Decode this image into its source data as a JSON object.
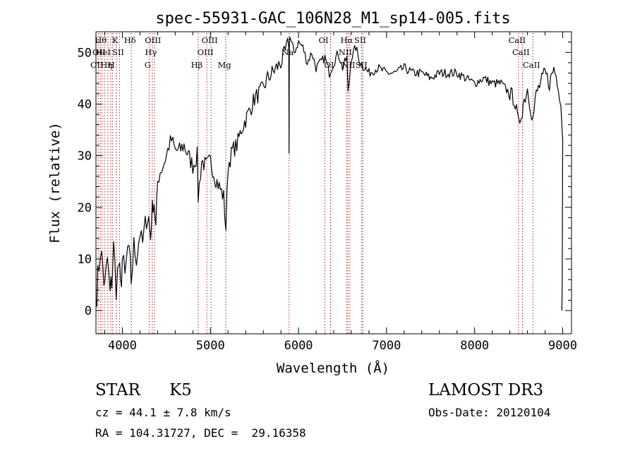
{
  "chart_data": {
    "type": "line",
    "title": "spec-55931-GAC_106N28_M1_sp14-005.fits",
    "xlabel": "Wavelength (Å)",
    "ylabel": "Flux (relative)",
    "xlim": [
      3700,
      9100
    ],
    "ylim": [
      -4.5,
      54
    ],
    "xticks": [
      4000,
      5000,
      6000,
      7000,
      8000,
      9000
    ],
    "yticks": [
      0,
      10,
      20,
      30,
      40,
      50
    ],
    "grid": false,
    "series": [
      {
        "name": "flux",
        "x": [
          3700,
          3720,
          3750,
          3780,
          3800,
          3830,
          3860,
          3880,
          3900,
          3930,
          3960,
          3980,
          4000,
          4030,
          4060,
          4090,
          4100,
          4130,
          4160,
          4200,
          4230,
          4260,
          4300,
          4320,
          4340,
          4360,
          4380,
          4400,
          4430,
          4460,
          4500,
          4530,
          4560,
          4600,
          4650,
          4700,
          4750,
          4800,
          4850,
          4861,
          4900,
          4950,
          5000,
          5050,
          5100,
          5150,
          5175,
          5200,
          5250,
          5300,
          5350,
          5400,
          5450,
          5500,
          5550,
          5600,
          5650,
          5700,
          5750,
          5800,
          5850,
          5890,
          5893,
          5896,
          5900,
          5950,
          6000,
          6050,
          6100,
          6150,
          6200,
          6250,
          6300,
          6350,
          6400,
          6450,
          6500,
          6550,
          6563,
          6600,
          6650,
          6700,
          6750,
          6800,
          6900,
          7000,
          7100,
          7200,
          7300,
          7400,
          7500,
          7600,
          7700,
          7800,
          7900,
          8000,
          8100,
          8200,
          8300,
          8400,
          8450,
          8498,
          8542,
          8550,
          8600,
          8662,
          8700,
          8750,
          8800,
          8850,
          8900,
          8950,
          8980,
          9000
        ],
        "values": [
          2,
          6,
          12,
          8,
          4,
          10,
          3,
          6,
          12,
          5,
          9,
          4,
          10,
          6,
          12,
          8,
          6,
          12,
          11,
          15,
          13,
          17,
          18,
          14,
          20,
          21,
          16,
          25,
          27,
          28,
          30,
          32,
          33,
          31,
          31,
          32,
          30,
          28,
          30,
          22,
          29,
          28,
          29,
          26,
          24,
          22,
          16,
          28,
          31,
          32,
          35,
          37,
          39,
          41,
          42,
          43,
          45,
          46,
          47,
          48,
          50,
          52,
          30,
          52,
          53,
          50,
          52,
          51,
          48,
          50,
          47,
          48,
          49,
          46,
          48,
          50,
          47,
          49,
          42,
          49,
          51,
          48,
          47,
          46,
          47,
          46,
          46,
          47,
          46,
          46,
          45,
          46,
          46,
          46,
          45,
          44,
          45,
          44,
          44,
          42,
          41,
          36,
          39,
          40,
          43,
          37,
          42,
          44,
          46,
          44,
          47,
          44,
          40,
          33
        ]
      }
    ],
    "line_markers": [
      {
        "x": 3726,
        "label": "OII",
        "row": 2
      },
      {
        "x": 3750,
        "label": "OII",
        "row": 1
      },
      {
        "x": 3770,
        "label": "Hθ",
        "row": 0
      },
      {
        "x": 3798,
        "label": "HeI",
        "row": 1
      },
      {
        "x": 3835,
        "label": "Hη",
        "row": 2
      },
      {
        "x": 3869,
        "label": "",
        "row": 0
      },
      {
        "x": 3889,
        "label": "H",
        "row": 2
      },
      {
        "x": 3934,
        "label": "K",
        "row": 0
      },
      {
        "x": 3968,
        "label": "SII",
        "row": 1
      },
      {
        "x": 4102,
        "label": "Hδ",
        "row": 0
      },
      {
        "x": 4304,
        "label": "G",
        "row": 2
      },
      {
        "x": 4340,
        "label": "Hγ",
        "row": 1
      },
      {
        "x": 4363,
        "label": "OIII",
        "row": 0
      },
      {
        "x": 4861,
        "label": "Hβ",
        "row": 2
      },
      {
        "x": 4959,
        "label": "OIII",
        "row": 1
      },
      {
        "x": 5007,
        "label": "OIII",
        "row": 0
      },
      {
        "x": 5175,
        "label": "Mg",
        "row": 2
      },
      {
        "x": 5893,
        "label": "Na",
        "row": 1
      },
      {
        "x": 6300,
        "label": "OI",
        "row": 0
      },
      {
        "x": 6364,
        "label": "OI",
        "row": 2
      },
      {
        "x": 6548,
        "label": "NII",
        "row": 1
      },
      {
        "x": 6563,
        "label": "Hα",
        "row": 0
      },
      {
        "x": 6583,
        "label": "NII",
        "row": 2
      },
      {
        "x": 6716,
        "label": "SII",
        "row": 0
      },
      {
        "x": 6731,
        "label": "SII",
        "row": 2
      },
      {
        "x": 8498,
        "label": "CaII",
        "row": 0
      },
      {
        "x": 8542,
        "label": "CaII",
        "row": 1
      },
      {
        "x": 8662,
        "label": "CaII",
        "row": 2
      }
    ]
  },
  "info": {
    "object_class": "STAR",
    "subclass": "K5",
    "survey": "LAMOST DR3",
    "cz": "cz = 44.1 ± 7.8 km/s",
    "obs_date": "Obs-Date: 20120104",
    "coords": "RA = 104.31727, DEC =  29.16358"
  },
  "colors": {
    "spectrum": "#000000",
    "marker": "#b22222",
    "frame": "#000000"
  }
}
